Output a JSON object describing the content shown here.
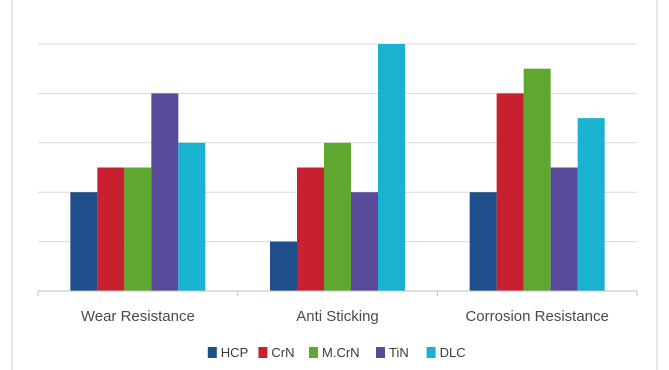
{
  "chart_data": {
    "type": "bar",
    "title": "",
    "xlabel": "",
    "ylabel": "",
    "categories": [
      "Wear Resistance",
      "Anti Sticking",
      "Corrosion Resistance"
    ],
    "series": [
      {
        "name": "HCP",
        "values": [
          2,
          1,
          2
        ],
        "color": "#1f4e8c"
      },
      {
        "name": "CrN",
        "values": [
          2.5,
          2.5,
          4
        ],
        "color": "#c8202f"
      },
      {
        "name": "M.CrN",
        "values": [
          2.5,
          3,
          4.5
        ],
        "color": "#5fa82f"
      },
      {
        "name": "TiN",
        "values": [
          4,
          2,
          2.5
        ],
        "color": "#5a4a9a"
      },
      {
        "name": "DLC",
        "values": [
          3,
          5,
          3.5
        ],
        "color": "#19b3d1"
      }
    ],
    "ylim": [
      0,
      5
    ],
    "y_gridlines": [
      1,
      2,
      3,
      4,
      5
    ],
    "grid": true,
    "legend_position": "bottom"
  }
}
